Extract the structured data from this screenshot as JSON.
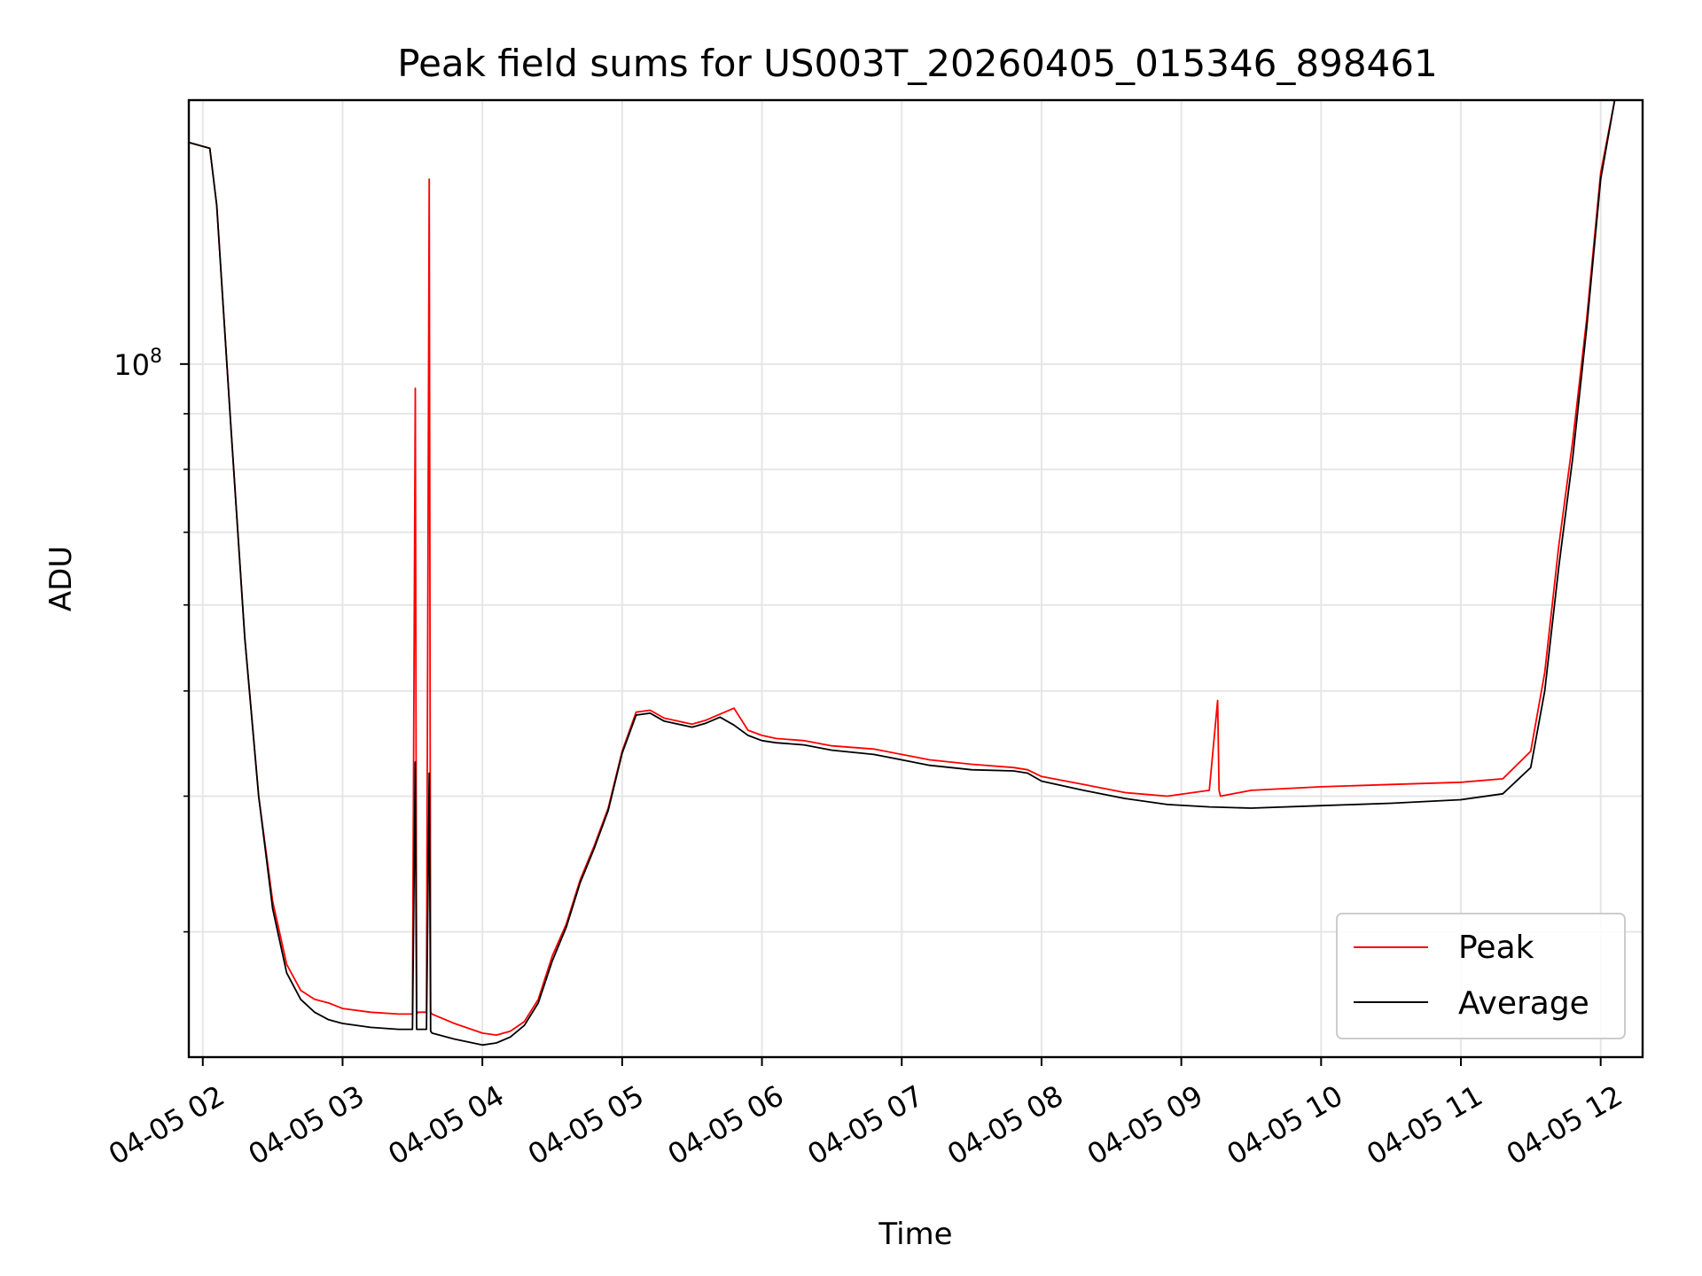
{
  "chart_data": {
    "type": "line",
    "title": "Peak field sums for US003T_20260405_015346_898461",
    "xlabel": "Time",
    "ylabel": "ADU",
    "yscale": "log",
    "ylim": [
      23000000.0,
      175000000.0
    ],
    "xlim_hours": [
      1.9,
      12.3
    ],
    "x_ticks": [
      {
        "label": "04-05 02",
        "hour": 2
      },
      {
        "label": "04-05 03",
        "hour": 3
      },
      {
        "label": "04-05 04",
        "hour": 4
      },
      {
        "label": "04-05 05",
        "hour": 5
      },
      {
        "label": "04-05 06",
        "hour": 6
      },
      {
        "label": "04-05 07",
        "hour": 7
      },
      {
        "label": "04-05 08",
        "hour": 8
      },
      {
        "label": "04-05 09",
        "hour": 9
      },
      {
        "label": "04-05 10",
        "hour": 10
      },
      {
        "label": "04-05 11",
        "hour": 11
      },
      {
        "label": "04-05 12",
        "hour": 12
      }
    ],
    "y_major_tick": {
      "base": "10",
      "exp": "8",
      "value": 100000000.0
    },
    "y_minor_ticks": [
      30000000.0,
      40000000.0,
      50000000.0,
      60000000.0,
      70000000.0,
      80000000.0,
      90000000.0
    ],
    "legend": {
      "position": "lower right"
    },
    "series": [
      {
        "name": "Peak",
        "color": "#ff0000",
        "x_hours": [
          1.9,
          2.05,
          2.1,
          2.2,
          2.3,
          2.4,
          2.5,
          2.6,
          2.7,
          2.8,
          2.9,
          3.0,
          3.2,
          3.4,
          3.5,
          3.52,
          3.53,
          3.54,
          3.6,
          3.62,
          3.63,
          3.64,
          3.8,
          4.0,
          4.1,
          4.2,
          4.3,
          4.4,
          4.5,
          4.6,
          4.7,
          4.8,
          4.9,
          5.0,
          5.1,
          5.2,
          5.3,
          5.5,
          5.6,
          5.7,
          5.8,
          5.9,
          6.0,
          6.1,
          6.3,
          6.5,
          6.8,
          7.0,
          7.2,
          7.5,
          7.8,
          7.9,
          8.0,
          8.3,
          8.6,
          8.9,
          9.2,
          9.26,
          9.27,
          9.28,
          9.5,
          10.0,
          10.5,
          11.0,
          11.3,
          11.5,
          11.6,
          11.7,
          11.8,
          11.9,
          12.0,
          12.1
        ],
        "values_adu": [
          160000000,
          158000000,
          140000000,
          88000000,
          56000000,
          40000000,
          32000000,
          28000000,
          26500000,
          26000000,
          25800000,
          25500000,
          25300000,
          25200000,
          25200000,
          95000000,
          25200000,
          25300000,
          25300000,
          148000000,
          25300000,
          25200000,
          24700000,
          24200000,
          24100000,
          24300000,
          24800000,
          26000000,
          28500000,
          30500000,
          33500000,
          36000000,
          39000000,
          44000000,
          47800000,
          48000000,
          47200000,
          46600000,
          47000000,
          47600000,
          48200000,
          46000000,
          45500000,
          45200000,
          45000000,
          44500000,
          44200000,
          43700000,
          43200000,
          42800000,
          42500000,
          42300000,
          41700000,
          41000000,
          40300000,
          40000000,
          40500000,
          49000000,
          40500000,
          40000000,
          40500000,
          40800000,
          41000000,
          41200000,
          41500000,
          44000000,
          52000000,
          68000000,
          85000000,
          110000000,
          150000000,
          180000000
        ]
      },
      {
        "name": "Average",
        "color": "#000000",
        "x_hours": [
          1.9,
          2.05,
          2.1,
          2.2,
          2.3,
          2.4,
          2.5,
          2.6,
          2.7,
          2.8,
          2.9,
          3.0,
          3.2,
          3.4,
          3.5,
          3.52,
          3.53,
          3.54,
          3.6,
          3.62,
          3.63,
          3.64,
          3.8,
          4.0,
          4.1,
          4.2,
          4.3,
          4.4,
          4.5,
          4.6,
          4.7,
          4.8,
          4.9,
          5.0,
          5.1,
          5.2,
          5.3,
          5.5,
          5.6,
          5.7,
          5.8,
          5.9,
          6.0,
          6.1,
          6.3,
          6.5,
          6.8,
          7.0,
          7.2,
          7.5,
          7.8,
          7.9,
          8.0,
          8.3,
          8.6,
          8.9,
          9.2,
          9.5,
          10.0,
          10.5,
          11.0,
          11.3,
          11.5,
          11.6,
          11.7,
          11.8,
          11.9,
          12.0,
          12.1
        ],
        "values_adu": [
          160000000,
          158000000,
          140000000,
          88000000,
          56000000,
          40000000,
          31500000,
          27500000,
          26000000,
          25300000,
          24900000,
          24700000,
          24500000,
          24400000,
          24400000,
          43000000,
          24400000,
          24400000,
          24400000,
          42000000,
          24300000,
          24200000,
          23900000,
          23600000,
          23700000,
          24000000,
          24600000,
          25800000,
          28200000,
          30300000,
          33300000,
          35800000,
          38800000,
          43800000,
          47500000,
          47700000,
          46900000,
          46300000,
          46700000,
          47300000,
          46500000,
          45500000,
          45000000,
          44800000,
          44600000,
          44100000,
          43700000,
          43200000,
          42700000,
          42300000,
          42200000,
          42000000,
          41300000,
          40500000,
          39800000,
          39300000,
          39100000,
          39000000,
          39200000,
          39400000,
          39700000,
          40200000,
          42500000,
          50000000,
          65000000,
          82000000,
          108000000,
          148000000,
          180000000
        ]
      }
    ]
  }
}
